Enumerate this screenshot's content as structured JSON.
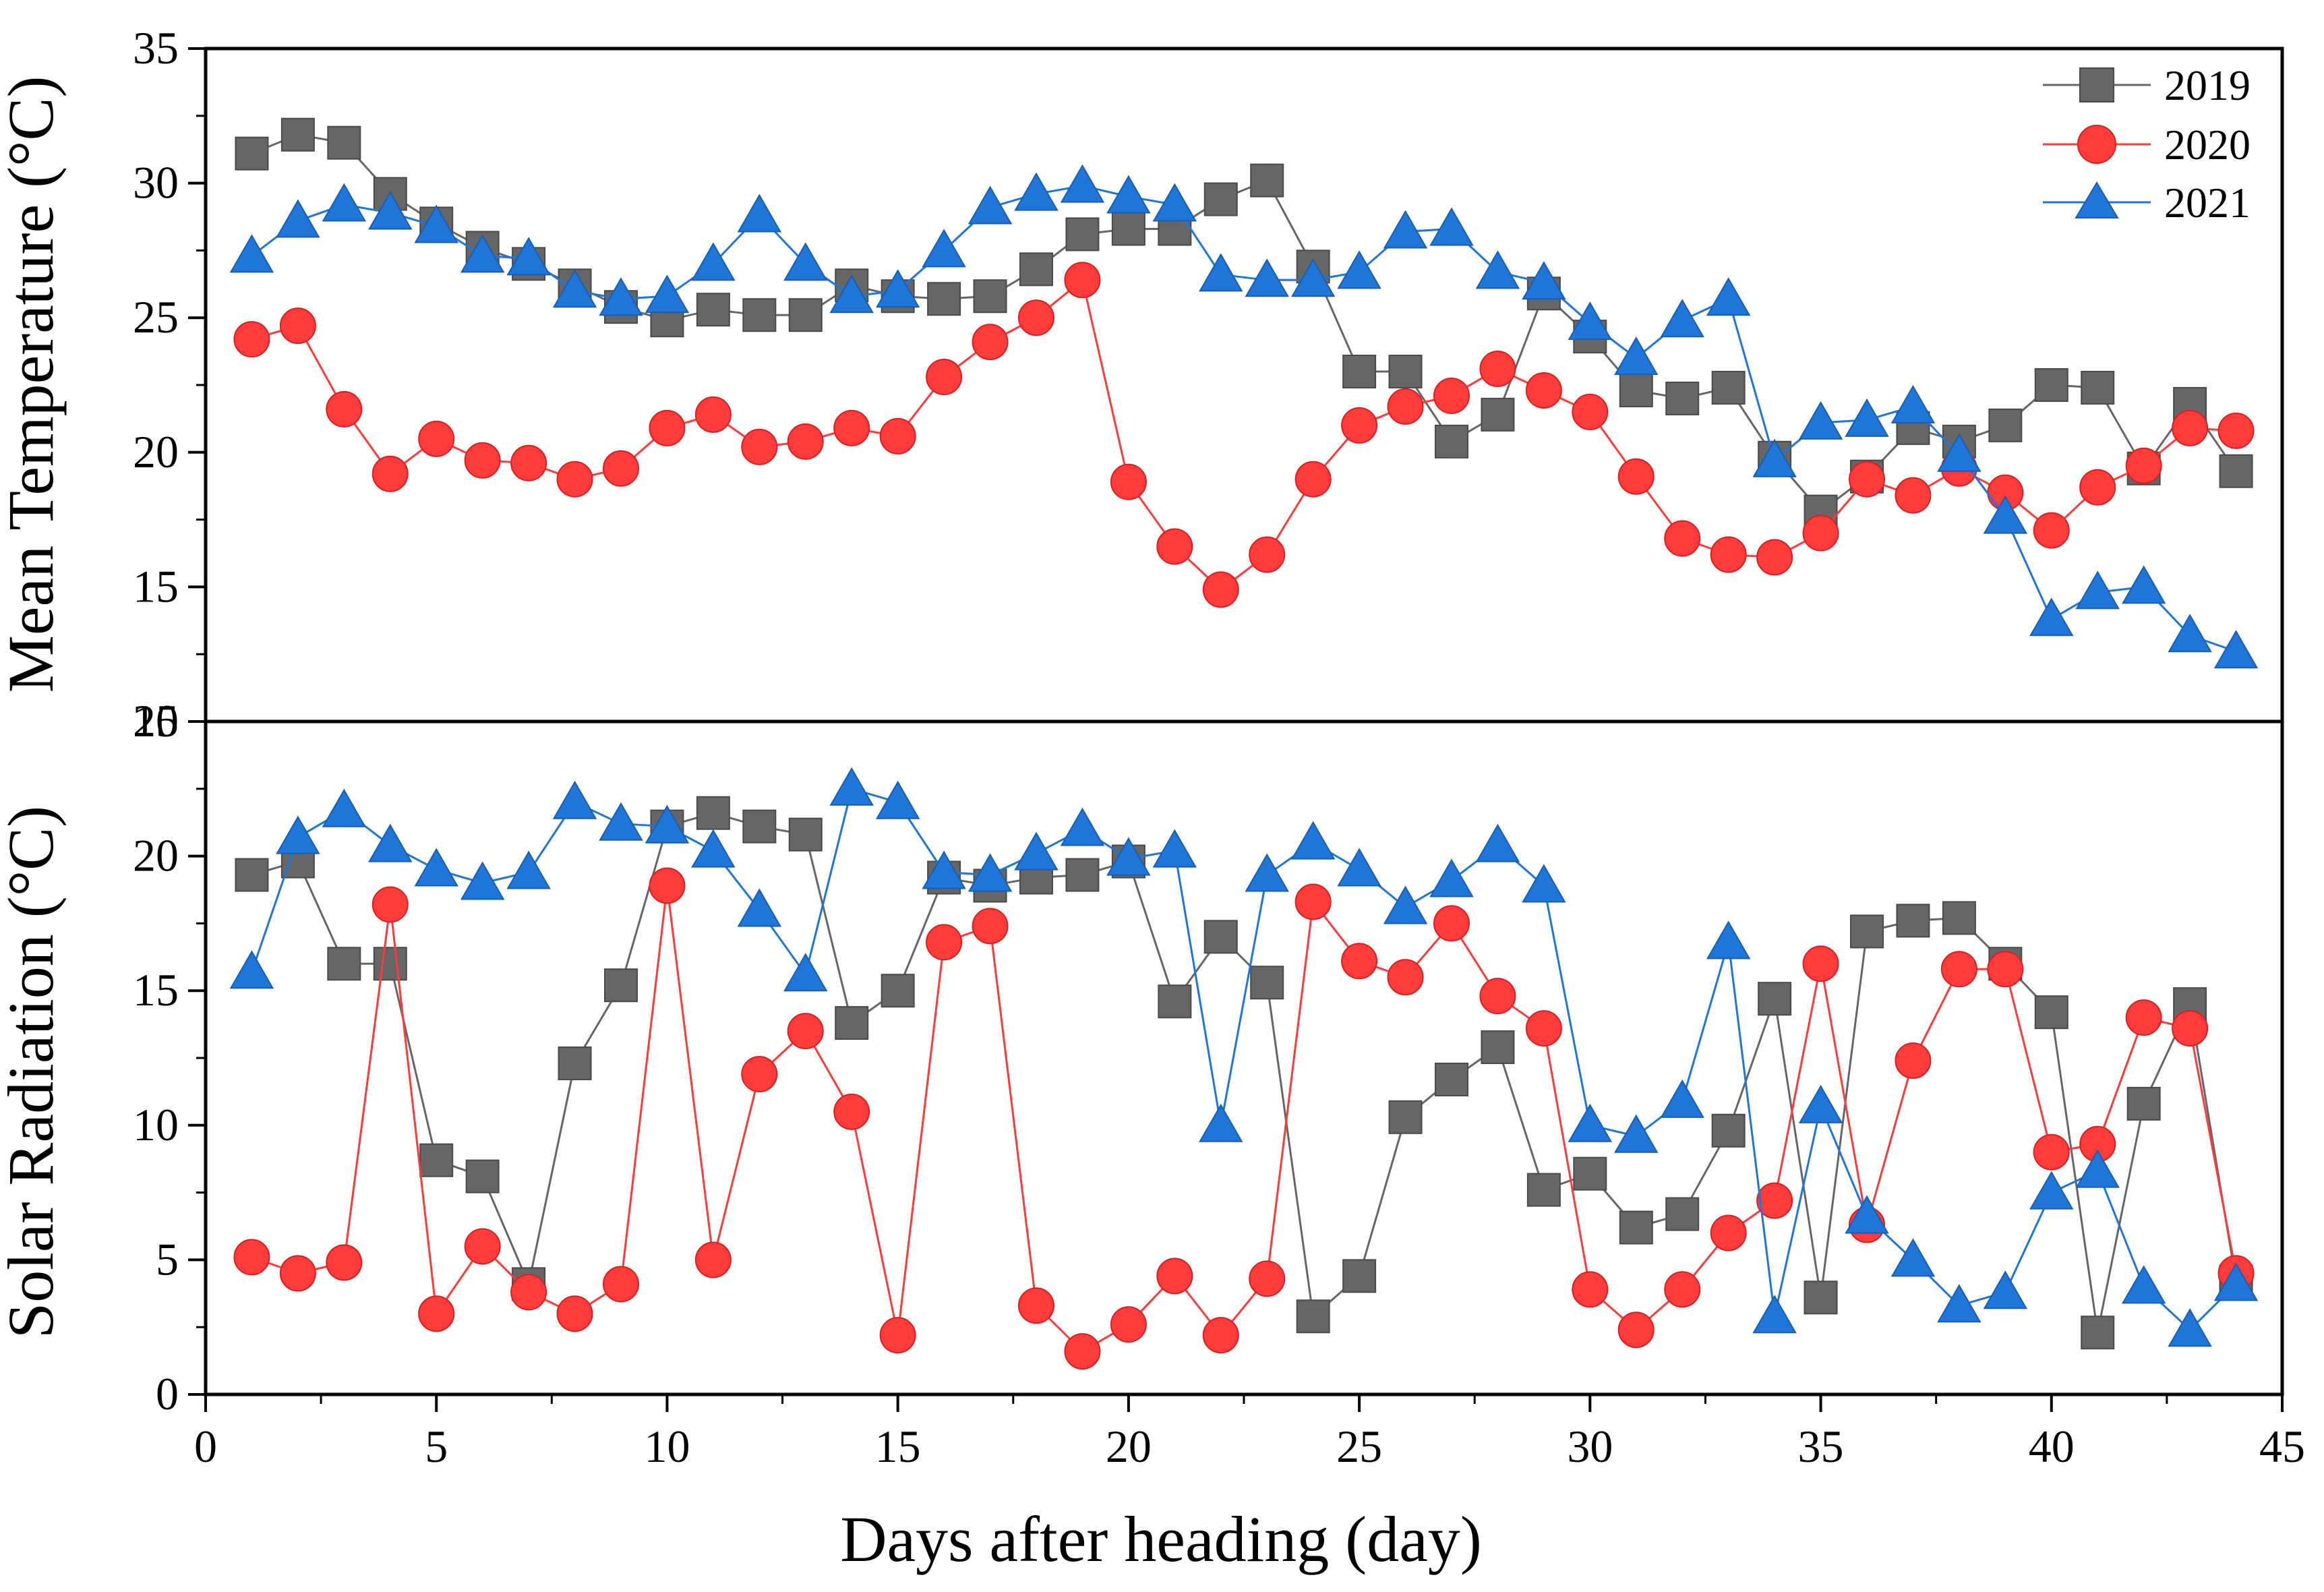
{
  "chart_data": [
    {
      "type": "line",
      "panel": "top",
      "title": "",
      "xlabel": "Days after heading (day)",
      "ylabel": "Mean Temperature (°C)",
      "xlim": [
        0,
        45
      ],
      "ylim": [
        10,
        35
      ],
      "xticks": [
        0,
        5,
        10,
        15,
        20,
        25,
        30,
        35,
        40,
        45
      ],
      "yticks": [
        10,
        15,
        20,
        25,
        30,
        35
      ],
      "legend_position": "top-right",
      "x": [
        1,
        2,
        3,
        4,
        5,
        6,
        7,
        8,
        9,
        10,
        11,
        12,
        13,
        14,
        15,
        16,
        17,
        18,
        19,
        20,
        21,
        22,
        23,
        24,
        25,
        26,
        27,
        28,
        29,
        30,
        31,
        32,
        33,
        34,
        35,
        36,
        37,
        38,
        39,
        40,
        41,
        42,
        43,
        44
      ],
      "series": [
        {
          "name": "2019",
          "color": "#666666",
          "marker": "square",
          "values": [
            31.1,
            31.8,
            31.5,
            29.6,
            28.5,
            27.6,
            27.0,
            26.2,
            25.4,
            24.9,
            25.3,
            25.1,
            25.1,
            26.2,
            25.8,
            25.7,
            25.8,
            26.8,
            28.1,
            28.3,
            28.3,
            29.4,
            30.1,
            26.9,
            23.0,
            23.0,
            20.4,
            21.4,
            25.9,
            24.3,
            22.3,
            22.0,
            22.4,
            19.8,
            17.8,
            19.1,
            20.9,
            20.4,
            21.0,
            22.5,
            22.4,
            19.4,
            21.8,
            19.3
          ]
        },
        {
          "name": "2020",
          "color": "#ff3b3b",
          "marker": "circle",
          "values": [
            24.2,
            24.7,
            21.6,
            19.2,
            20.5,
            19.7,
            19.6,
            19.0,
            19.4,
            20.9,
            21.4,
            20.2,
            20.4,
            20.9,
            20.6,
            22.8,
            24.1,
            25.0,
            26.4,
            18.9,
            16.5,
            14.9,
            16.2,
            19.0,
            21.0,
            21.7,
            22.1,
            23.1,
            22.3,
            21.5,
            19.1,
            16.8,
            16.2,
            16.1,
            17.0,
            19.0,
            18.4,
            19.4,
            18.5,
            17.1,
            18.7,
            19.5,
            20.9,
            20.8
          ]
        },
        {
          "name": "2021",
          "color": "#1f75d8",
          "marker": "triangle",
          "values": [
            27.3,
            28.6,
            29.2,
            28.9,
            28.4,
            27.3,
            27.2,
            26.0,
            25.7,
            25.8,
            27.0,
            28.8,
            27.0,
            25.8,
            26.0,
            27.5,
            29.1,
            29.6,
            29.9,
            29.5,
            29.2,
            26.6,
            26.4,
            26.4,
            26.7,
            28.2,
            28.3,
            26.7,
            26.3,
            24.8,
            23.5,
            24.9,
            25.7,
            19.7,
            21.1,
            21.2,
            21.7,
            19.9,
            17.6,
            13.8,
            14.8,
            15.0,
            13.2,
            12.6
          ]
        }
      ]
    },
    {
      "type": "line",
      "panel": "bottom",
      "title": "",
      "xlabel": "Days after heading (day)",
      "ylabel": "Solar Radiation (°C)",
      "xlim": [
        0,
        45
      ],
      "ylim": [
        0,
        25
      ],
      "xticks": [
        0,
        5,
        10,
        15,
        20,
        25,
        30,
        35,
        40,
        45
      ],
      "yticks": [
        0,
        5,
        10,
        15,
        20,
        25
      ],
      "x": [
        1,
        2,
        3,
        4,
        5,
        6,
        7,
        8,
        9,
        10,
        11,
        12,
        13,
        14,
        15,
        16,
        17,
        18,
        19,
        20,
        21,
        22,
        23,
        24,
        25,
        26,
        27,
        28,
        29,
        30,
        31,
        32,
        33,
        34,
        35,
        36,
        37,
        38,
        39,
        40,
        41,
        42,
        43,
        44
      ],
      "series": [
        {
          "name": "2019",
          "color": "#666666",
          "marker": "square",
          "values": [
            19.3,
            19.8,
            16.0,
            16.0,
            8.7,
            8.1,
            4.1,
            12.3,
            15.2,
            21.1,
            21.6,
            21.1,
            20.8,
            13.8,
            15.0,
            19.2,
            18.9,
            19.2,
            19.3,
            19.8,
            14.6,
            17.0,
            15.3,
            2.9,
            4.4,
            10.3,
            11.7,
            12.9,
            7.6,
            8.2,
            6.2,
            6.7,
            9.8,
            14.7,
            3.6,
            17.2,
            17.6,
            17.7,
            16.0,
            14.2,
            2.3,
            10.8,
            14.5,
            4.2
          ]
        },
        {
          "name": "2020",
          "color": "#ff3b3b",
          "marker": "circle",
          "values": [
            5.1,
            4.5,
            4.9,
            18.2,
            3.0,
            5.5,
            3.8,
            3.0,
            4.1,
            18.9,
            5.0,
            11.9,
            13.5,
            10.5,
            2.2,
            16.8,
            17.4,
            3.3,
            1.6,
            2.6,
            4.4,
            2.2,
            4.3,
            18.3,
            16.1,
            15.5,
            17.5,
            14.8,
            13.6,
            3.9,
            2.4,
            3.9,
            6.0,
            7.2,
            16.0,
            6.3,
            12.4,
            15.8,
            15.8,
            9.0,
            9.3,
            14.0,
            13.6,
            4.5
          ]
        },
        {
          "name": "2021",
          "color": "#1f75d8",
          "marker": "triangle",
          "values": [
            15.7,
            20.7,
            21.7,
            20.4,
            19.5,
            19.0,
            19.4,
            22.0,
            21.2,
            21.1,
            20.2,
            18.0,
            15.6,
            22.5,
            22.0,
            19.4,
            19.3,
            20.1,
            21.0,
            19.9,
            20.2,
            10.0,
            19.3,
            20.5,
            19.5,
            18.1,
            19.1,
            20.4,
            18.9,
            10.0,
            9.6,
            10.9,
            16.8,
            2.9,
            10.7,
            6.6,
            5.0,
            3.3,
            3.8,
            7.5,
            8.3,
            4.0,
            2.4,
            4.1
          ]
        }
      ]
    }
  ]
}
